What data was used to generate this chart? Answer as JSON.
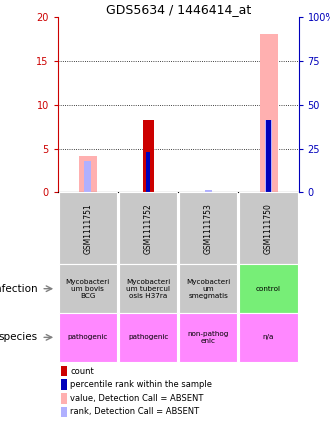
{
  "title": "GDS5634 / 1446414_at",
  "samples": [
    "GSM1111751",
    "GSM1111752",
    "GSM1111753",
    "GSM1111750"
  ],
  "ylim_left": [
    0,
    20
  ],
  "ylim_right": [
    0,
    100
  ],
  "yticks_left": [
    0,
    5,
    10,
    15,
    20
  ],
  "ytick_labels_left": [
    "0",
    "5",
    "10",
    "15",
    "20"
  ],
  "ytick_labels_right": [
    "0",
    "25",
    "50",
    "75",
    "100%"
  ],
  "bars": {
    "count": [
      null,
      8.3,
      null,
      null
    ],
    "rank": [
      null,
      23.0,
      null,
      41.0
    ],
    "value_abs": [
      4.2,
      null,
      null,
      18.1
    ],
    "rank_abs": [
      18.0,
      null,
      1.5,
      41.0
    ]
  },
  "bar_colors": {
    "count": "#cc0000",
    "rank": "#0000bb",
    "value_abs": "#ffb0b0",
    "rank_abs": "#b0b0ff"
  },
  "infection_colors": [
    "#c8c8c8",
    "#c8c8c8",
    "#c8c8c8",
    "#77ee77"
  ],
  "infection_texts": [
    "Mycobacteri\num bovis\nBCG",
    "Mycobacteri\num tubercul\nosis H37ra",
    "Mycobacteri\num\nsmegmatis",
    "control"
  ],
  "species_colors": [
    "#ff88ff",
    "#ff88ff",
    "#ff88ff",
    "#ff88ff"
  ],
  "species_texts": [
    "pathogenic",
    "pathogenic",
    "non-pathog\nenic",
    "n/a"
  ],
  "legend_items": [
    {
      "color": "#cc0000",
      "label": "count"
    },
    {
      "color": "#0000bb",
      "label": "percentile rank within the sample"
    },
    {
      "color": "#ffb0b0",
      "label": "value, Detection Call = ABSENT"
    },
    {
      "color": "#b0b0ff",
      "label": "rank, Detection Call = ABSENT"
    }
  ],
  "row_labels": [
    "infection",
    "species"
  ],
  "sample_box_color": "#c8c8c8",
  "bg_color": "#ffffff",
  "left_axis_color": "#cc0000",
  "right_axis_color": "#0000bb"
}
